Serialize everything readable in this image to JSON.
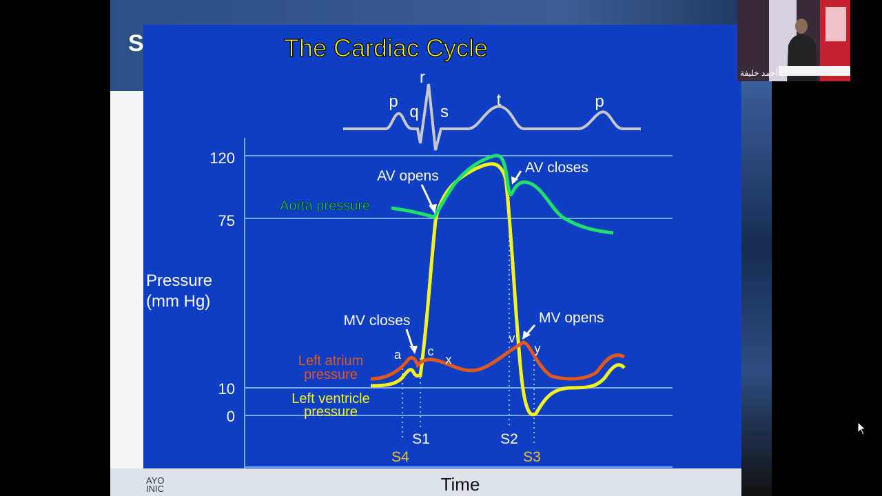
{
  "slide_heading": "S",
  "diagram": {
    "title": "The Cardiac Cycle",
    "ecg_labels": {
      "p1": "p",
      "q": "q",
      "r": "r",
      "s": "s",
      "t": "t",
      "p2": "p"
    },
    "y_axis_label_line1": "Pressure",
    "y_axis_label_line2": "(mm Hg)",
    "y_ticks": [
      "120",
      "75",
      "10",
      "0"
    ],
    "x_axis_label": "Time",
    "series_labels": {
      "aorta": "Aorta pressure",
      "left_atrium_line1": "Left atrium",
      "left_atrium_line2": "pressure",
      "left_ventricle_line1": "Left ventricle",
      "left_ventricle_line2": "pressure"
    },
    "annotations": {
      "av_opens": "AV opens",
      "av_closes": "AV closes",
      "mv_closes": "MV closes",
      "mv_opens": "MV opens"
    },
    "wave_labels": {
      "a": "a",
      "c": "c",
      "x": "x",
      "v": "v",
      "y": "y"
    },
    "heart_sounds": {
      "s1": "S1",
      "s2": "S2",
      "s3": "S3",
      "s4": "S4"
    },
    "footer_logo_text": "AYO\nINIC",
    "colors": {
      "background": "#0d3ec4",
      "aorta": "#1ee06a",
      "left_atrium": "#e0581a",
      "left_ventricle": "#f4f41c",
      "title": "#f4f41c",
      "ecg": "#c8c8c8",
      "gridline": "#7fa6ff"
    }
  },
  "video": {
    "participant_name": "أحمد خليفة"
  }
}
